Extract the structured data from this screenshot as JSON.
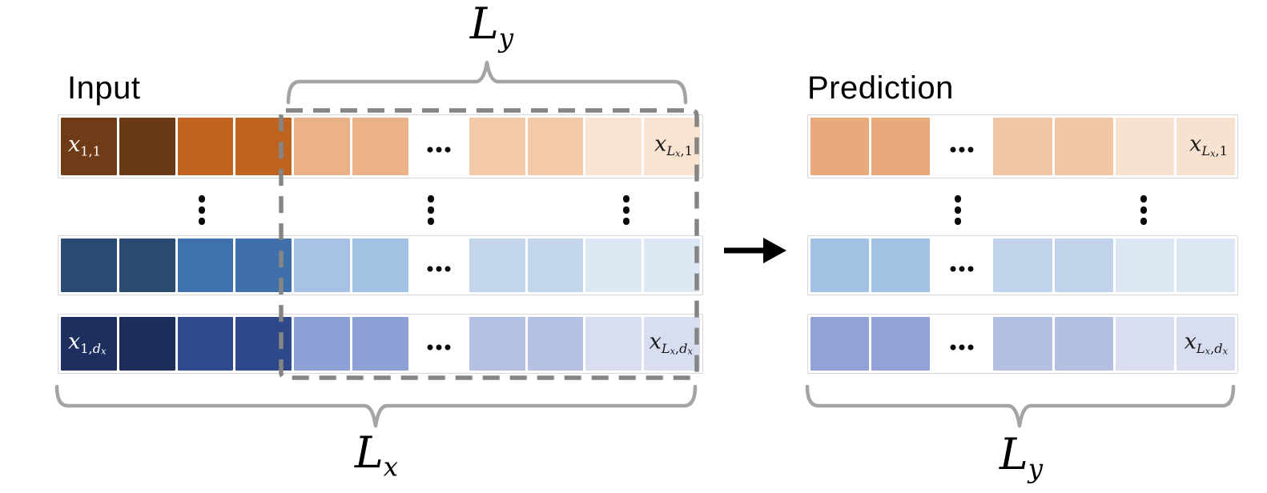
{
  "labels": {
    "input": "Input",
    "prediction": "Prediction"
  },
  "math_labels": {
    "ly_top": [
      {
        "t": "L",
        "s": 0,
        "i": 1
      },
      {
        "t": "y",
        "s": 1,
        "i": 1
      }
    ],
    "lx_bottom": [
      {
        "t": "L",
        "s": 0,
        "i": 1
      },
      {
        "t": "x",
        "s": 1,
        "i": 1
      }
    ],
    "ly_bottom": [
      {
        "t": "L",
        "s": 0,
        "i": 1
      },
      {
        "t": "y",
        "s": 1,
        "i": 1
      }
    ]
  },
  "icons": {
    "arrow_right": "→",
    "vertical_ellipsis": "⋮",
    "horizontal_ellipsis": "⋯"
  },
  "colors": {
    "brace": "#a4a4a4",
    "dashed_box": "#858585",
    "arrow": "#000000",
    "row_border": "#d6d6d6"
  },
  "input_matrix": {
    "rows": [
      {
        "cells": [
          {
            "c": "#6f3c17",
            "label": [
              {
                "t": "x",
                "s": 0,
                "i": 1
              },
              {
                "t": "1,1",
                "s": 1,
                "i": 0
              }
            ],
            "label_color": "#ffffff",
            "align": "left"
          },
          {
            "c": "#693a15"
          },
          {
            "c": "#c0641f"
          },
          {
            "c": "#bf6320"
          },
          {
            "c": "#ebb189"
          },
          {
            "c": "#ebb189"
          },
          {
            "c": "#ffffff",
            "dots": true
          },
          {
            "c": "#f2c9a9"
          },
          {
            "c": "#f2c9a9"
          },
          {
            "c": "#f9e4d2"
          },
          {
            "c": "#f9e4d2",
            "label": [
              {
                "t": "x",
                "s": 0,
                "i": 1
              },
              {
                "t": "L",
                "s": 1,
                "i": 1
              },
              {
                "t": "x",
                "s": 2,
                "i": 1
              },
              {
                "t": ",1",
                "s": 1,
                "i": 0
              }
            ],
            "label_color": "#1a1a1a",
            "align": "right"
          }
        ]
      },
      {
        "cells": [
          {
            "c": "#284a73"
          },
          {
            "c": "#2a4a6f"
          },
          {
            "c": "#3e71ad"
          },
          {
            "c": "#3f70ab"
          },
          {
            "c": "#a6c3e4"
          },
          {
            "c": "#a3c1e3"
          },
          {
            "c": "#ffffff",
            "dots": true
          },
          {
            "c": "#c3d5eb"
          },
          {
            "c": "#c3d5eb"
          },
          {
            "c": "#dde8f4"
          },
          {
            "c": "#dde8f4"
          }
        ]
      },
      {
        "cells": [
          {
            "c": "#1e2f5f",
            "label": [
              {
                "t": "x",
                "s": 0,
                "i": 1
              },
              {
                "t": "1,",
                "s": 1,
                "i": 0
              },
              {
                "t": "d",
                "s": 1,
                "i": 1
              },
              {
                "t": "x",
                "s": 2,
                "i": 1
              }
            ],
            "label_color": "#ffffff",
            "align": "left"
          },
          {
            "c": "#1d2d59"
          },
          {
            "c": "#30498e"
          },
          {
            "c": "#2f488a"
          },
          {
            "c": "#8da0d5"
          },
          {
            "c": "#8da0d5"
          },
          {
            "c": "#ffffff",
            "dots": true
          },
          {
            "c": "#b4c0e4"
          },
          {
            "c": "#b4c0e4"
          },
          {
            "c": "#d8def0"
          },
          {
            "c": "#d8def0",
            "label": [
              {
                "t": "x",
                "s": 0,
                "i": 1
              },
              {
                "t": "L",
                "s": 1,
                "i": 1
              },
              {
                "t": "x",
                "s": 2,
                "i": 1
              },
              {
                "t": ",",
                "s": 1,
                "i": 0
              },
              {
                "t": "d",
                "s": 1,
                "i": 1
              },
              {
                "t": "x",
                "s": 2,
                "i": 1
              }
            ],
            "label_color": "#1a1a1a",
            "align": "right"
          }
        ]
      }
    ]
  },
  "prediction_matrix": {
    "rows": [
      {
        "cells": [
          {
            "c": "#eaa97b"
          },
          {
            "c": "#eaa97b"
          },
          {
            "c": "#ffffff",
            "dots": true
          },
          {
            "c": "#f1c6a4"
          },
          {
            "c": "#f1c6a4"
          },
          {
            "c": "#f7e2d0"
          },
          {
            "c": "#f7e2d0",
            "label": [
              {
                "t": "x",
                "s": 0,
                "i": 1
              },
              {
                "t": "L",
                "s": 1,
                "i": 1
              },
              {
                "t": "x",
                "s": 2,
                "i": 1
              },
              {
                "t": ",1",
                "s": 1,
                "i": 0
              }
            ],
            "label_color": "#1a1a1a",
            "align": "right"
          }
        ]
      },
      {
        "cells": [
          {
            "c": "#a3c1e3"
          },
          {
            "c": "#a3c1e3"
          },
          {
            "c": "#ffffff",
            "dots": true
          },
          {
            "c": "#c1d3ea"
          },
          {
            "c": "#c1d3ea"
          },
          {
            "c": "#dde7f3"
          },
          {
            "c": "#dde7f3"
          }
        ]
      },
      {
        "cells": [
          {
            "c": "#93a2d6"
          },
          {
            "c": "#93a2d6"
          },
          {
            "c": "#ffffff",
            "dots": true
          },
          {
            "c": "#b3bee3"
          },
          {
            "c": "#b3bee3"
          },
          {
            "c": "#d8ddef"
          },
          {
            "c": "#d8ddef",
            "label": [
              {
                "t": "x",
                "s": 0,
                "i": 1
              },
              {
                "t": "L",
                "s": 1,
                "i": 1
              },
              {
                "t": "x",
                "s": 2,
                "i": 1
              },
              {
                "t": ",",
                "s": 1,
                "i": 0
              },
              {
                "t": "d",
                "s": 1,
                "i": 1
              },
              {
                "t": "x",
                "s": 2,
                "i": 1
              }
            ],
            "label_color": "#1a1a1a",
            "align": "right"
          }
        ]
      }
    ]
  }
}
